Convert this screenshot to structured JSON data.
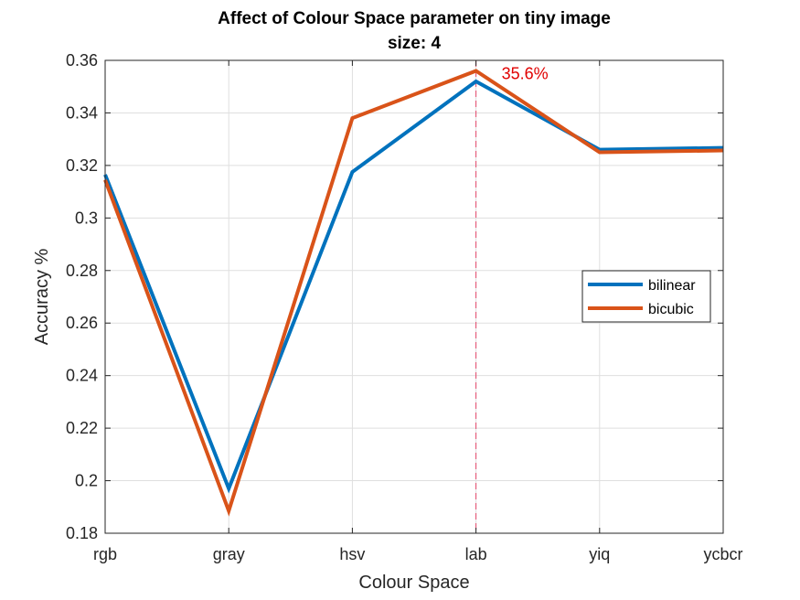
{
  "chart_data": {
    "type": "line",
    "title": "Affect of Colour Space parameter on tiny image",
    "subtitle": "size: 4",
    "xlabel": "Colour Space",
    "ylabel": "Accuracy %",
    "categories": [
      "rgb",
      "gray",
      "hsv",
      "lab",
      "yiq",
      "ycbcr"
    ],
    "ylim": [
      0.18,
      0.36
    ],
    "yticks": [
      "0.18",
      "0.2",
      "0.22",
      "0.24",
      "0.26",
      "0.28",
      "0.3",
      "0.32",
      "0.34",
      "0.36"
    ],
    "grid": true,
    "legend_position": "right",
    "series": [
      {
        "name": "bilinear",
        "color": "#0072BD",
        "values": [
          0.3165,
          0.197,
          0.3175,
          0.352,
          0.326,
          0.3267
        ]
      },
      {
        "name": "bicubic",
        "color": "#D95319",
        "values": [
          0.3145,
          0.1885,
          0.338,
          0.356,
          0.325,
          0.3257
        ]
      }
    ],
    "annotations": [
      {
        "type": "vertical-line",
        "category": "lab",
        "color": "#E5486B"
      },
      {
        "type": "text",
        "text": "35.6%",
        "category": "lab",
        "y": 0.356,
        "color": "#E00000"
      }
    ]
  }
}
